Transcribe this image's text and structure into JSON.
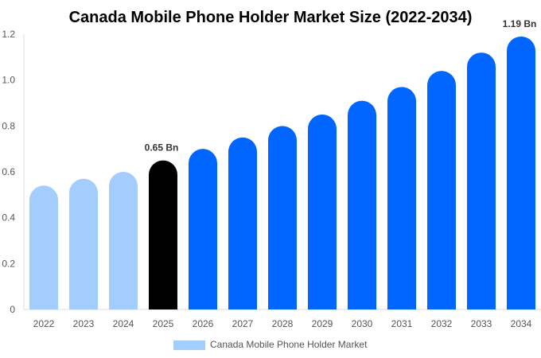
{
  "chart_data": {
    "type": "bar",
    "title": "Canada Mobile Phone Holder Market Size (2022-2034)",
    "xlabel": "",
    "ylabel": "",
    "ylim": [
      0,
      1.2
    ],
    "yticks": [
      "0",
      "0.2",
      "0.4",
      "0.6",
      "0.8",
      "1.0",
      "1.2"
    ],
    "categories": [
      "2022",
      "2023",
      "2024",
      "2025",
      "2026",
      "2027",
      "2028",
      "2029",
      "2030",
      "2031",
      "2032",
      "2033",
      "2034"
    ],
    "series": [
      {
        "name": "Canada Mobile Phone Holder Market",
        "values": [
          0.54,
          0.57,
          0.6,
          0.65,
          0.7,
          0.75,
          0.8,
          0.85,
          0.91,
          0.97,
          1.04,
          1.12,
          1.19
        ]
      }
    ],
    "bar_colors": [
      "#a3cdfd",
      "#a3cdfd",
      "#a3cdfd",
      "#000000",
      "#0066ff",
      "#0066ff",
      "#0066ff",
      "#0066ff",
      "#0066ff",
      "#0066ff",
      "#0066ff",
      "#0066ff",
      "#0066ff"
    ],
    "data_labels": [
      {
        "index": 3,
        "text": "0.65 Bn"
      },
      {
        "index": 12,
        "text": "1.19 Bn"
      }
    ],
    "legend": {
      "label": "Canada Mobile Phone Holder Market",
      "color": "#a3cdfd",
      "position": "bottom"
    },
    "grid": false
  }
}
